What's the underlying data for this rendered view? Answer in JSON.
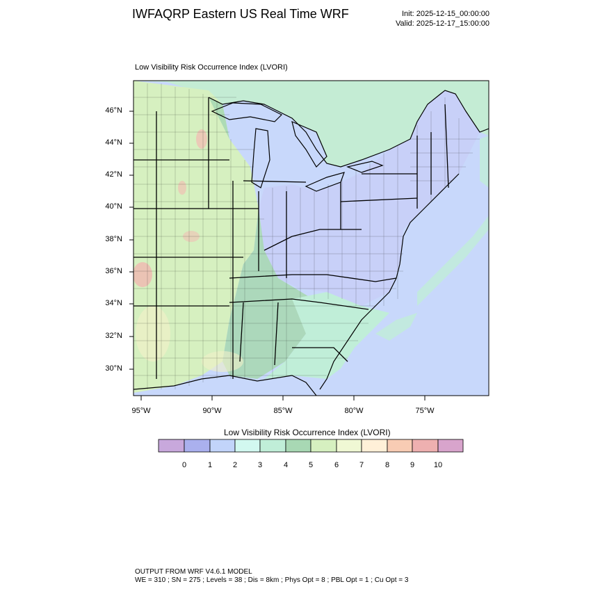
{
  "header": {
    "title": "IWFAQRP Eastern US Real Time WRF",
    "init": "Init: 2025-12-15_00:00:00",
    "valid": "Valid: 2025-12-17_15:00:00"
  },
  "map": {
    "subtitle": "Low Visibility Risk Occurrence Index   (LVORI)",
    "lat_labels": [
      "46°N",
      "44°N",
      "42°N",
      "40°N",
      "38°N",
      "36°N",
      "34°N",
      "32°N",
      "30°N"
    ],
    "lon_labels": [
      "95°W",
      "90°W",
      "85°W",
      "80°W",
      "75°W"
    ]
  },
  "legend": {
    "title": "Low Visibility Risk Occurrence Index  (LVORI)",
    "labels": [
      "0",
      "1",
      "2",
      "3",
      "4",
      "5",
      "6",
      "7",
      "8",
      "9",
      "10"
    ],
    "colors": [
      "#c8a8dc",
      "#aab0ee",
      "#c2d4fa",
      "#d2f8f0",
      "#c0eed8",
      "#a8d8b4",
      "#d6f0c0",
      "#f0f8d4",
      "#fff0d8",
      "#f8ccb4",
      "#eeb0b0",
      "#d8a4cc"
    ]
  },
  "footer": {
    "line1": "OUTPUT FROM WRF V4.6.1 MODEL",
    "line2": "WE = 310 ; SN = 275 ; Levels = 38 ; Dis = 8km ; Phys Opt = 8 ; PBL Opt = 1 ; Cu Opt = 3"
  }
}
